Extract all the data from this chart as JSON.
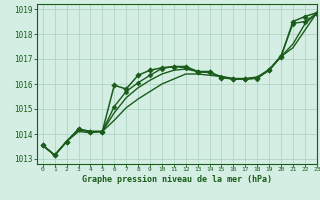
{
  "title": "",
  "xlabel": "Graphe pression niveau de la mer (hPa)",
  "xlim": [
    -0.5,
    23
  ],
  "ylim": [
    1012.8,
    1019.2
  ],
  "yticks": [
    1013,
    1014,
    1015,
    1016,
    1017,
    1018,
    1019
  ],
  "xticks": [
    0,
    1,
    2,
    3,
    4,
    5,
    6,
    7,
    8,
    9,
    10,
    11,
    12,
    13,
    14,
    15,
    16,
    17,
    18,
    19,
    20,
    21,
    22,
    23
  ],
  "bg_color": "#d4eee4",
  "grid_color": "#b0d4c4",
  "line_color": "#1a5c1a",
  "lines": [
    {
      "x": [
        0,
        1,
        2,
        3,
        4,
        5,
        6,
        7,
        8,
        9,
        10,
        11,
        12,
        13,
        14,
        15,
        16,
        17,
        18,
        19,
        20,
        21,
        22,
        23
      ],
      "y": [
        1013.55,
        1013.15,
        1013.7,
        1014.2,
        1014.1,
        1014.1,
        1015.95,
        1015.8,
        1016.35,
        1016.55,
        1016.65,
        1016.7,
        1016.7,
        1016.5,
        1016.5,
        1016.25,
        1016.2,
        1016.2,
        1016.25,
        1016.55,
        1017.1,
        1018.5,
        1018.7,
        1018.85
      ],
      "marker": "D",
      "markersize": 2.8,
      "lw": 1.1,
      "zorder": 5
    },
    {
      "x": [
        0,
        1,
        2,
        3,
        4,
        5,
        6,
        7,
        8,
        9,
        10,
        11,
        12,
        13,
        14,
        15,
        16,
        17,
        18,
        19,
        20,
        21,
        22,
        23
      ],
      "y": [
        1013.55,
        1013.15,
        1013.7,
        1014.1,
        1014.05,
        1014.1,
        1014.55,
        1015.05,
        1015.4,
        1015.7,
        1016.0,
        1016.2,
        1016.4,
        1016.4,
        1016.35,
        1016.3,
        1016.2,
        1016.2,
        1016.25,
        1016.55,
        1017.1,
        1017.45,
        1018.15,
        1018.85
      ],
      "marker": null,
      "markersize": 0,
      "lw": 1.0,
      "zorder": 3
    },
    {
      "x": [
        0,
        1,
        2,
        3,
        4,
        5,
        6,
        7,
        8,
        9,
        10,
        11,
        12,
        13,
        14,
        15,
        16,
        17,
        18,
        19,
        20,
        21,
        22,
        23
      ],
      "y": [
        1013.55,
        1013.15,
        1013.7,
        1014.15,
        1014.1,
        1014.1,
        1014.85,
        1015.45,
        1015.85,
        1016.15,
        1016.4,
        1016.55,
        1016.6,
        1016.5,
        1016.45,
        1016.3,
        1016.22,
        1016.22,
        1016.28,
        1016.58,
        1017.1,
        1017.6,
        1018.4,
        1018.85
      ],
      "marker": null,
      "markersize": 0,
      "lw": 1.0,
      "zorder": 3
    },
    {
      "x": [
        0,
        1,
        2,
        3,
        4,
        5,
        6,
        7,
        8,
        9,
        10,
        11,
        12,
        13,
        14,
        15,
        16,
        17,
        18,
        19,
        20,
        21,
        22,
        23
      ],
      "y": [
        1013.55,
        1013.15,
        1013.7,
        1014.2,
        1014.1,
        1014.1,
        1015.1,
        1015.7,
        1016.05,
        1016.35,
        1016.62,
        1016.7,
        1016.65,
        1016.5,
        1016.47,
        1016.27,
        1016.2,
        1016.2,
        1016.22,
        1016.58,
        1017.12,
        1018.42,
        1018.5,
        1018.82
      ],
      "marker": "D",
      "markersize": 2.5,
      "lw": 1.0,
      "zorder": 4
    }
  ]
}
